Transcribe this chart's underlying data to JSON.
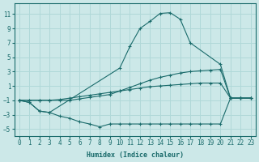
{
  "xlabel": "Humidex (Indice chaleur)",
  "xlim": [
    -0.5,
    23.5
  ],
  "ylim": [
    -6,
    12.5
  ],
  "yticks": [
    -5,
    -3,
    -1,
    1,
    3,
    5,
    7,
    9,
    11
  ],
  "xticks": [
    0,
    1,
    2,
    3,
    4,
    5,
    6,
    7,
    8,
    9,
    10,
    11,
    12,
    13,
    14,
    15,
    16,
    17,
    18,
    19,
    20,
    21,
    22,
    23
  ],
  "bg_color": "#cce8e8",
  "grid_color": "#b0d8d8",
  "line_color": "#1a6b6b",
  "lines": [
    {
      "x": [
        0,
        1,
        2,
        3,
        10,
        11,
        12,
        13,
        14,
        15,
        16,
        17,
        20,
        21,
        22,
        23
      ],
      "y": [
        -1,
        -1.3,
        -2.5,
        -2.7,
        3.5,
        6.5,
        9.0,
        10.0,
        11.1,
        11.2,
        10.3,
        7.0,
        4.0,
        -0.7,
        -0.7,
        -0.7
      ]
    },
    {
      "x": [
        0,
        1,
        2,
        3,
        4,
        5,
        6,
        7,
        8,
        9,
        10,
        11,
        12,
        13,
        14,
        15,
        16,
        17,
        18,
        19,
        20,
        21,
        22,
        23
      ],
      "y": [
        -1,
        -1,
        -1,
        -1,
        -1,
        -1,
        -0.8,
        -0.6,
        -0.4,
        -0.2,
        0.3,
        0.8,
        1.3,
        1.8,
        2.2,
        2.5,
        2.8,
        3.0,
        3.1,
        3.2,
        3.3,
        -0.7,
        -0.7,
        -0.7
      ]
    },
    {
      "x": [
        0,
        1,
        2,
        3,
        4,
        5,
        6,
        7,
        8,
        9,
        10,
        11,
        12,
        13,
        14,
        15,
        16,
        17,
        18,
        19,
        20,
        21,
        22,
        23
      ],
      "y": [
        -1,
        -1,
        -1,
        -1,
        -0.9,
        -0.7,
        -0.5,
        -0.3,
        -0.1,
        0.1,
        0.3,
        0.5,
        0.7,
        0.9,
        1.0,
        1.1,
        1.2,
        1.3,
        1.4,
        1.4,
        1.4,
        -0.7,
        -0.7,
        -0.7
      ]
    },
    {
      "x": [
        0,
        1,
        2,
        3,
        4,
        5,
        6,
        7,
        8,
        9,
        10,
        11,
        12,
        13,
        14,
        15,
        16,
        17,
        18,
        19,
        20,
        21,
        22,
        23
      ],
      "y": [
        -1,
        -1.3,
        -2.5,
        -2.7,
        -3.2,
        -3.5,
        -4.0,
        -4.3,
        -4.7,
        -4.3,
        -4.3,
        -4.3,
        -4.3,
        -4.3,
        -4.3,
        -4.3,
        -4.3,
        -4.3,
        -4.3,
        -4.3,
        -4.3,
        -0.7,
        -0.7,
        -0.7
      ]
    }
  ]
}
